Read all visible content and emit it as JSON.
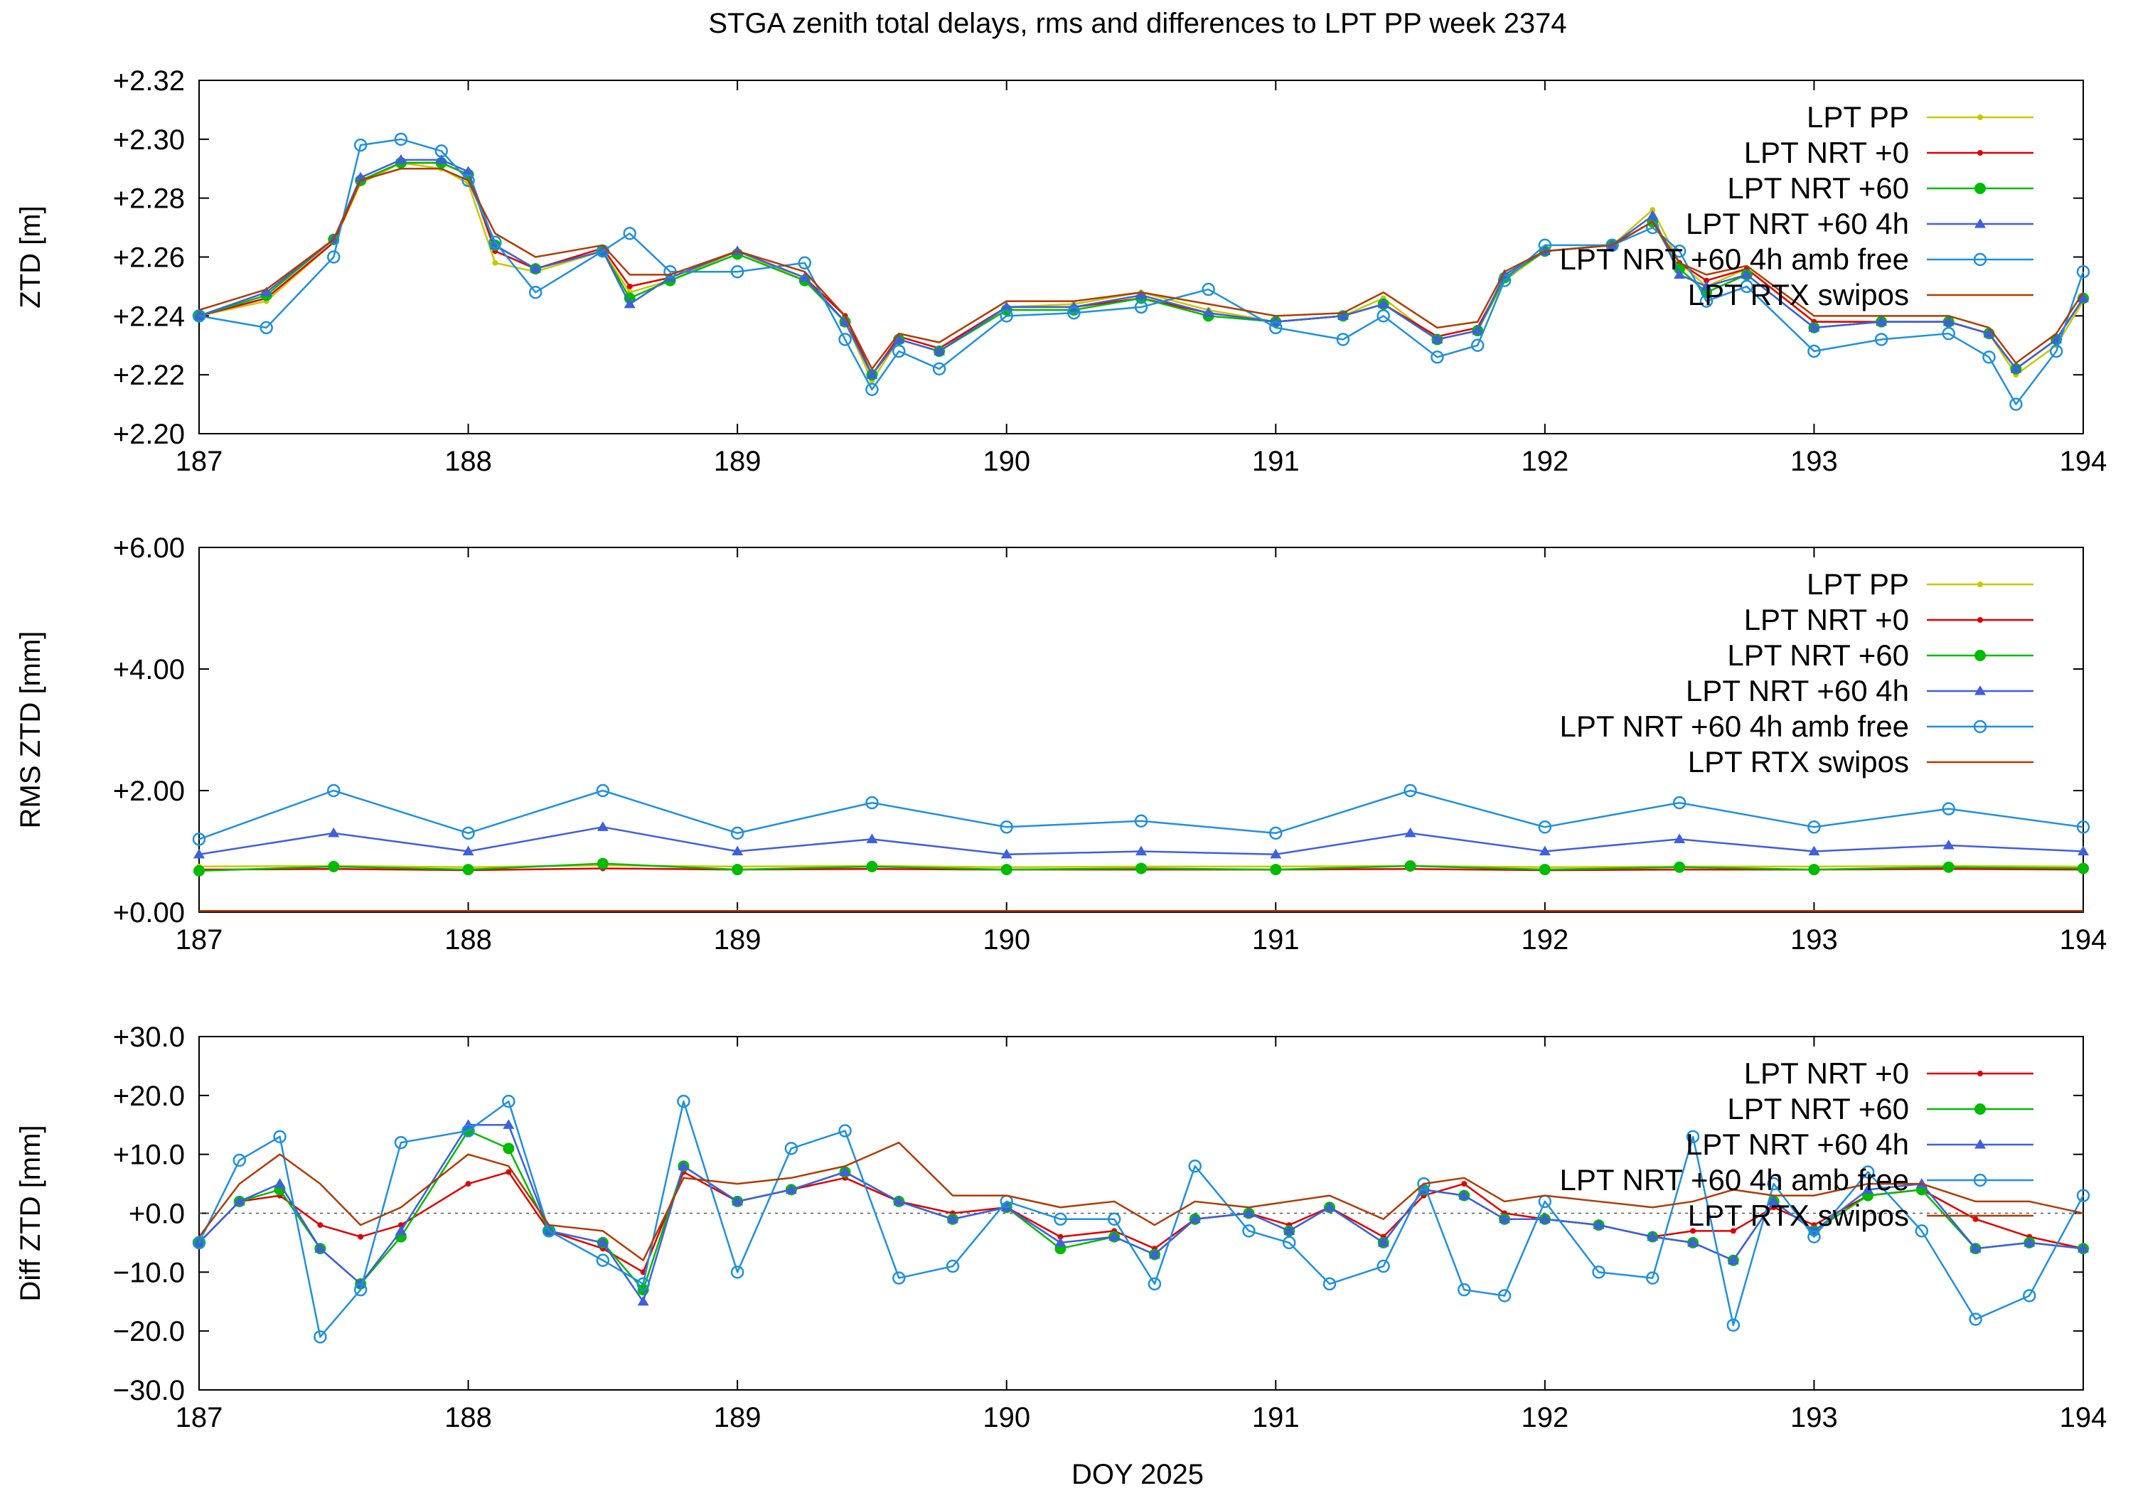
{
  "title": "STGA zenith total delays, rms and differences to LPT PP week 2374",
  "xlabel": "DOY 2025",
  "colors": {
    "LPT PP": "#c8c800",
    "LPT NRT +0": "#e00000",
    "LPT NRT +60": "#00bb00",
    "LPT NRT +60 4h": "#3f5fdf",
    "LPT NRT +60 4h amb free": "#1e90e0",
    "LPT RTX swipos": "#b03c00"
  },
  "chart_data": [
    {
      "type": "line",
      "ylabel": "ZTD [m]",
      "xlim": [
        187,
        194
      ],
      "ylim": [
        2.2,
        2.32
      ],
      "x_ticks": [
        "187",
        "188",
        "189",
        "190",
        "191",
        "192",
        "193",
        "194"
      ],
      "y_ticks": [
        "+2.20",
        "+2.22",
        "+2.24",
        "+2.26",
        "+2.28",
        "+2.30",
        "+2.32"
      ],
      "legend": [
        "LPT PP",
        "LPT NRT +0",
        "LPT NRT +60",
        "LPT NRT +60 4h",
        "LPT NRT +60 4h amb free",
        "LPT RTX swipos"
      ],
      "legend_position": "top-right",
      "zero_line": false,
      "x": [
        187.0,
        187.25,
        187.5,
        187.6,
        187.75,
        187.9,
        188.0,
        188.1,
        188.25,
        188.5,
        188.6,
        188.75,
        189.0,
        189.25,
        189.4,
        189.5,
        189.6,
        189.75,
        190.0,
        190.25,
        190.5,
        190.75,
        191.0,
        191.25,
        191.4,
        191.6,
        191.75,
        191.85,
        192.0,
        192.25,
        192.4,
        192.5,
        192.6,
        192.75,
        193.0,
        193.25,
        193.5,
        193.65,
        193.75,
        193.9,
        194.0
      ],
      "series": [
        {
          "name": "LPT PP",
          "values": [
            2.24,
            2.245,
            2.265,
            2.285,
            2.292,
            2.29,
            2.285,
            2.258,
            2.255,
            2.262,
            2.248,
            2.252,
            2.262,
            2.252,
            2.238,
            2.218,
            2.232,
            2.228,
            2.243,
            2.244,
            2.248,
            2.242,
            2.238,
            2.24,
            2.246,
            2.232,
            2.235,
            2.252,
            2.262,
            2.264,
            2.276,
            2.258,
            2.25,
            2.256,
            2.238,
            2.238,
            2.238,
            2.234,
            2.22,
            2.23,
            2.245
          ]
        },
        {
          "name": "LPT NRT +0",
          "values": [
            2.24,
            2.246,
            2.265,
            2.286,
            2.292,
            2.292,
            2.288,
            2.262,
            2.256,
            2.263,
            2.25,
            2.253,
            2.262,
            2.253,
            2.24,
            2.22,
            2.233,
            2.229,
            2.243,
            2.243,
            2.246,
            2.241,
            2.238,
            2.24,
            2.244,
            2.233,
            2.236,
            2.253,
            2.262,
            2.264,
            2.272,
            2.258,
            2.252,
            2.256,
            2.238,
            2.238,
            2.238,
            2.234,
            2.222,
            2.232,
            2.246
          ]
        },
        {
          "name": "LPT NRT +60",
          "values": [
            2.24,
            2.247,
            2.266,
            2.286,
            2.292,
            2.292,
            2.288,
            2.264,
            2.256,
            2.262,
            2.246,
            2.252,
            2.261,
            2.252,
            2.238,
            2.22,
            2.232,
            2.228,
            2.242,
            2.242,
            2.246,
            2.24,
            2.238,
            2.24,
            2.244,
            2.232,
            2.235,
            2.253,
            2.262,
            2.264,
            2.272,
            2.256,
            2.248,
            2.254,
            2.236,
            2.238,
            2.238,
            2.234,
            2.222,
            2.232,
            2.246
          ]
        },
        {
          "name": "LPT NRT +60 4h",
          "values": [
            2.24,
            2.248,
            2.266,
            2.287,
            2.293,
            2.293,
            2.289,
            2.264,
            2.256,
            2.262,
            2.244,
            2.253,
            2.262,
            2.253,
            2.238,
            2.22,
            2.232,
            2.228,
            2.243,
            2.243,
            2.247,
            2.241,
            2.238,
            2.24,
            2.244,
            2.232,
            2.235,
            2.254,
            2.262,
            2.264,
            2.274,
            2.254,
            2.25,
            2.254,
            2.236,
            2.238,
            2.238,
            2.234,
            2.222,
            2.232,
            2.246
          ]
        },
        {
          "name": "LPT NRT +60 4h amb free",
          "values": [
            2.24,
            2.236,
            2.26,
            2.298,
            2.3,
            2.296,
            2.286,
            2.265,
            2.248,
            2.262,
            2.268,
            2.255,
            2.255,
            2.258,
            2.232,
            2.215,
            2.228,
            2.222,
            2.24,
            2.241,
            2.243,
            2.249,
            2.236,
            2.232,
            2.24,
            2.226,
            2.23,
            2.252,
            2.264,
            2.264,
            2.27,
            2.262,
            2.245,
            2.25,
            2.228,
            2.232,
            2.234,
            2.226,
            2.21,
            2.228,
            2.255
          ]
        },
        {
          "name": "LPT RTX swipos",
          "values": [
            2.242,
            2.249,
            2.266,
            2.286,
            2.29,
            2.29,
            2.286,
            2.268,
            2.26,
            2.264,
            2.254,
            2.254,
            2.262,
            2.255,
            2.24,
            2.222,
            2.234,
            2.231,
            2.245,
            2.245,
            2.248,
            2.244,
            2.24,
            2.241,
            2.248,
            2.236,
            2.238,
            2.255,
            2.262,
            2.264,
            2.272,
            2.258,
            2.254,
            2.257,
            2.24,
            2.24,
            2.24,
            2.236,
            2.224,
            2.234,
            2.248
          ]
        }
      ]
    },
    {
      "type": "line",
      "ylabel": "RMS ZTD [mm]",
      "xlim": [
        187,
        194
      ],
      "ylim": [
        0,
        6
      ],
      "x_ticks": [
        "187",
        "188",
        "189",
        "190",
        "191",
        "192",
        "193",
        "194"
      ],
      "y_ticks": [
        "+0.00",
        "+2.00",
        "+4.00",
        "+6.00"
      ],
      "legend": [
        "LPT PP",
        "LPT NRT +0",
        "LPT NRT +60",
        "LPT NRT +60 4h",
        "LPT NRT +60 4h amb free",
        "LPT RTX swipos"
      ],
      "legend_position": "top-right",
      "zero_line": false,
      "x": [
        187.0,
        187.5,
        188.0,
        188.5,
        189.0,
        189.5,
        190.0,
        190.5,
        191.0,
        191.5,
        192.0,
        192.5,
        193.0,
        193.5,
        194.0
      ],
      "series": [
        {
          "name": "LPT PP",
          "values": [
            0.75,
            0.76,
            0.74,
            0.77,
            0.75,
            0.76,
            0.74,
            0.75,
            0.75,
            0.76,
            0.74,
            0.75,
            0.75,
            0.76,
            0.75
          ]
        },
        {
          "name": "LPT NRT +0",
          "values": [
            0.7,
            0.71,
            0.69,
            0.72,
            0.7,
            0.71,
            0.7,
            0.7,
            0.7,
            0.71,
            0.69,
            0.7,
            0.7,
            0.71,
            0.7
          ]
        },
        {
          "name": "LPT NRT +60",
          "values": [
            0.68,
            0.75,
            0.7,
            0.8,
            0.7,
            0.75,
            0.7,
            0.72,
            0.7,
            0.76,
            0.7,
            0.74,
            0.7,
            0.74,
            0.72
          ]
        },
        {
          "name": "LPT NRT +60 4h",
          "values": [
            0.95,
            1.3,
            1.0,
            1.4,
            1.0,
            1.2,
            0.95,
            1.0,
            0.95,
            1.3,
            1.0,
            1.2,
            1.0,
            1.1,
            1.0
          ]
        },
        {
          "name": "LPT NRT +60 4h amb free",
          "values": [
            1.2,
            2.0,
            1.3,
            2.0,
            1.3,
            1.8,
            1.4,
            1.5,
            1.3,
            2.0,
            1.4,
            1.8,
            1.4,
            1.7,
            1.4
          ]
        },
        {
          "name": "LPT RTX swipos",
          "values": [
            0.02,
            0.02,
            0.02,
            0.02,
            0.02,
            0.02,
            0.02,
            0.02,
            0.02,
            0.02,
            0.02,
            0.02,
            0.02,
            0.02,
            0.02
          ]
        }
      ]
    },
    {
      "type": "line",
      "ylabel": "Diff ZTD [mm]",
      "xlim": [
        187,
        194
      ],
      "ylim": [
        -30,
        30
      ],
      "x_ticks": [
        "187",
        "188",
        "189",
        "190",
        "191",
        "192",
        "193",
        "194"
      ],
      "y_ticks": [
        "−30.0",
        "−20.0",
        "−10.0",
        "+0.0",
        "+10.0",
        "+20.0",
        "+30.0"
      ],
      "legend": [
        "LPT NRT +0",
        "LPT NRT +60",
        "LPT NRT +60 4h",
        "LPT NRT +60 4h amb free",
        "LPT RTX swipos"
      ],
      "legend_position": "top-right",
      "zero_line": true,
      "x": [
        187.0,
        187.15,
        187.3,
        187.45,
        187.6,
        187.75,
        188.0,
        188.15,
        188.3,
        188.5,
        188.65,
        188.8,
        189.0,
        189.2,
        189.4,
        189.6,
        189.8,
        190.0,
        190.2,
        190.4,
        190.55,
        190.7,
        190.9,
        191.05,
        191.2,
        191.4,
        191.55,
        191.7,
        191.85,
        192.0,
        192.2,
        192.4,
        192.55,
        192.7,
        192.85,
        193.0,
        193.2,
        193.4,
        193.6,
        193.8,
        194.0
      ],
      "series": [
        {
          "name": "LPT NRT +0",
          "values": [
            -5.0,
            2.0,
            3.0,
            -2.0,
            -4.0,
            -2.0,
            5.0,
            7.0,
            -3.0,
            -6.0,
            -10.0,
            7.0,
            2.0,
            4.0,
            6.0,
            2.0,
            0.0,
            1.0,
            -4.0,
            -3.0,
            -6.0,
            -1.0,
            0.0,
            -2.0,
            1.0,
            -4.0,
            3.0,
            5.0,
            0.0,
            -1.0,
            -2.0,
            -4.0,
            -3.0,
            -3.0,
            1.0,
            -2.0,
            3.0,
            4.0,
            -1.0,
            -4.0,
            -6.0
          ]
        },
        {
          "name": "LPT NRT +60",
          "values": [
            -5.0,
            2.0,
            4.0,
            -6.0,
            -12.0,
            -4.0,
            14.0,
            11.0,
            -3.0,
            -5.0,
            -13.0,
            8.0,
            2.0,
            4.0,
            7.0,
            2.0,
            -1.0,
            1.0,
            -6.0,
            -4.0,
            -7.0,
            -1.0,
            0.0,
            -3.0,
            1.0,
            -5.0,
            4.0,
            3.0,
            -1.0,
            -1.0,
            -2.0,
            -4.0,
            -5.0,
            -8.0,
            2.0,
            -3.0,
            3.0,
            4.0,
            -6.0,
            -5.0,
            -6.0
          ]
        },
        {
          "name": "LPT NRT +60 4h",
          "values": [
            -5.0,
            2.0,
            5.0,
            -6.0,
            -12.0,
            -3.0,
            15.0,
            15.0,
            -3.0,
            -5.0,
            -15.0,
            8.0,
            2.0,
            4.0,
            7.0,
            2.0,
            -1.0,
            1.0,
            -5.0,
            -4.0,
            -7.0,
            -1.0,
            0.0,
            -3.0,
            1.0,
            -5.0,
            4.0,
            3.0,
            -1.0,
            -1.0,
            -2.0,
            -4.0,
            -5.0,
            -8.0,
            2.0,
            -3.0,
            4.0,
            5.0,
            -6.0,
            -5.0,
            -6.0
          ]
        },
        {
          "name": "LPT NRT +60 4h amb free",
          "values": [
            -5.0,
            9.0,
            13.0,
            -21.0,
            -13.0,
            12.0,
            14.0,
            19.0,
            -3.0,
            -8.0,
            -12.0,
            19.0,
            -10.0,
            11.0,
            14.0,
            -11.0,
            -9.0,
            2.0,
            -1.0,
            -1.0,
            -12.0,
            8.0,
            -3.0,
            -5.0,
            -12.0,
            -9.0,
            5.0,
            -13.0,
            -14.0,
            2.0,
            -10.0,
            -11.0,
            13.0,
            -19.0,
            5.0,
            -4.0,
            7.0,
            -3.0,
            -18.0,
            -14.0,
            3.0
          ]
        },
        {
          "name": "LPT RTX swipos",
          "values": [
            -4.0,
            5.0,
            10.0,
            5.0,
            -2.0,
            1.0,
            10.0,
            8.0,
            -2.0,
            -3.0,
            -8.0,
            6.0,
            5.0,
            6.0,
            8.0,
            12.0,
            3.0,
            3.0,
            1.0,
            2.0,
            -2.0,
            2.0,
            1.0,
            2.0,
            3.0,
            -1.0,
            5.0,
            6.0,
            2.0,
            3.0,
            2.0,
            1.0,
            2.0,
            4.0,
            3.0,
            3.0,
            5.0,
            5.0,
            2.0,
            2.0,
            0.0
          ]
        }
      ]
    }
  ]
}
